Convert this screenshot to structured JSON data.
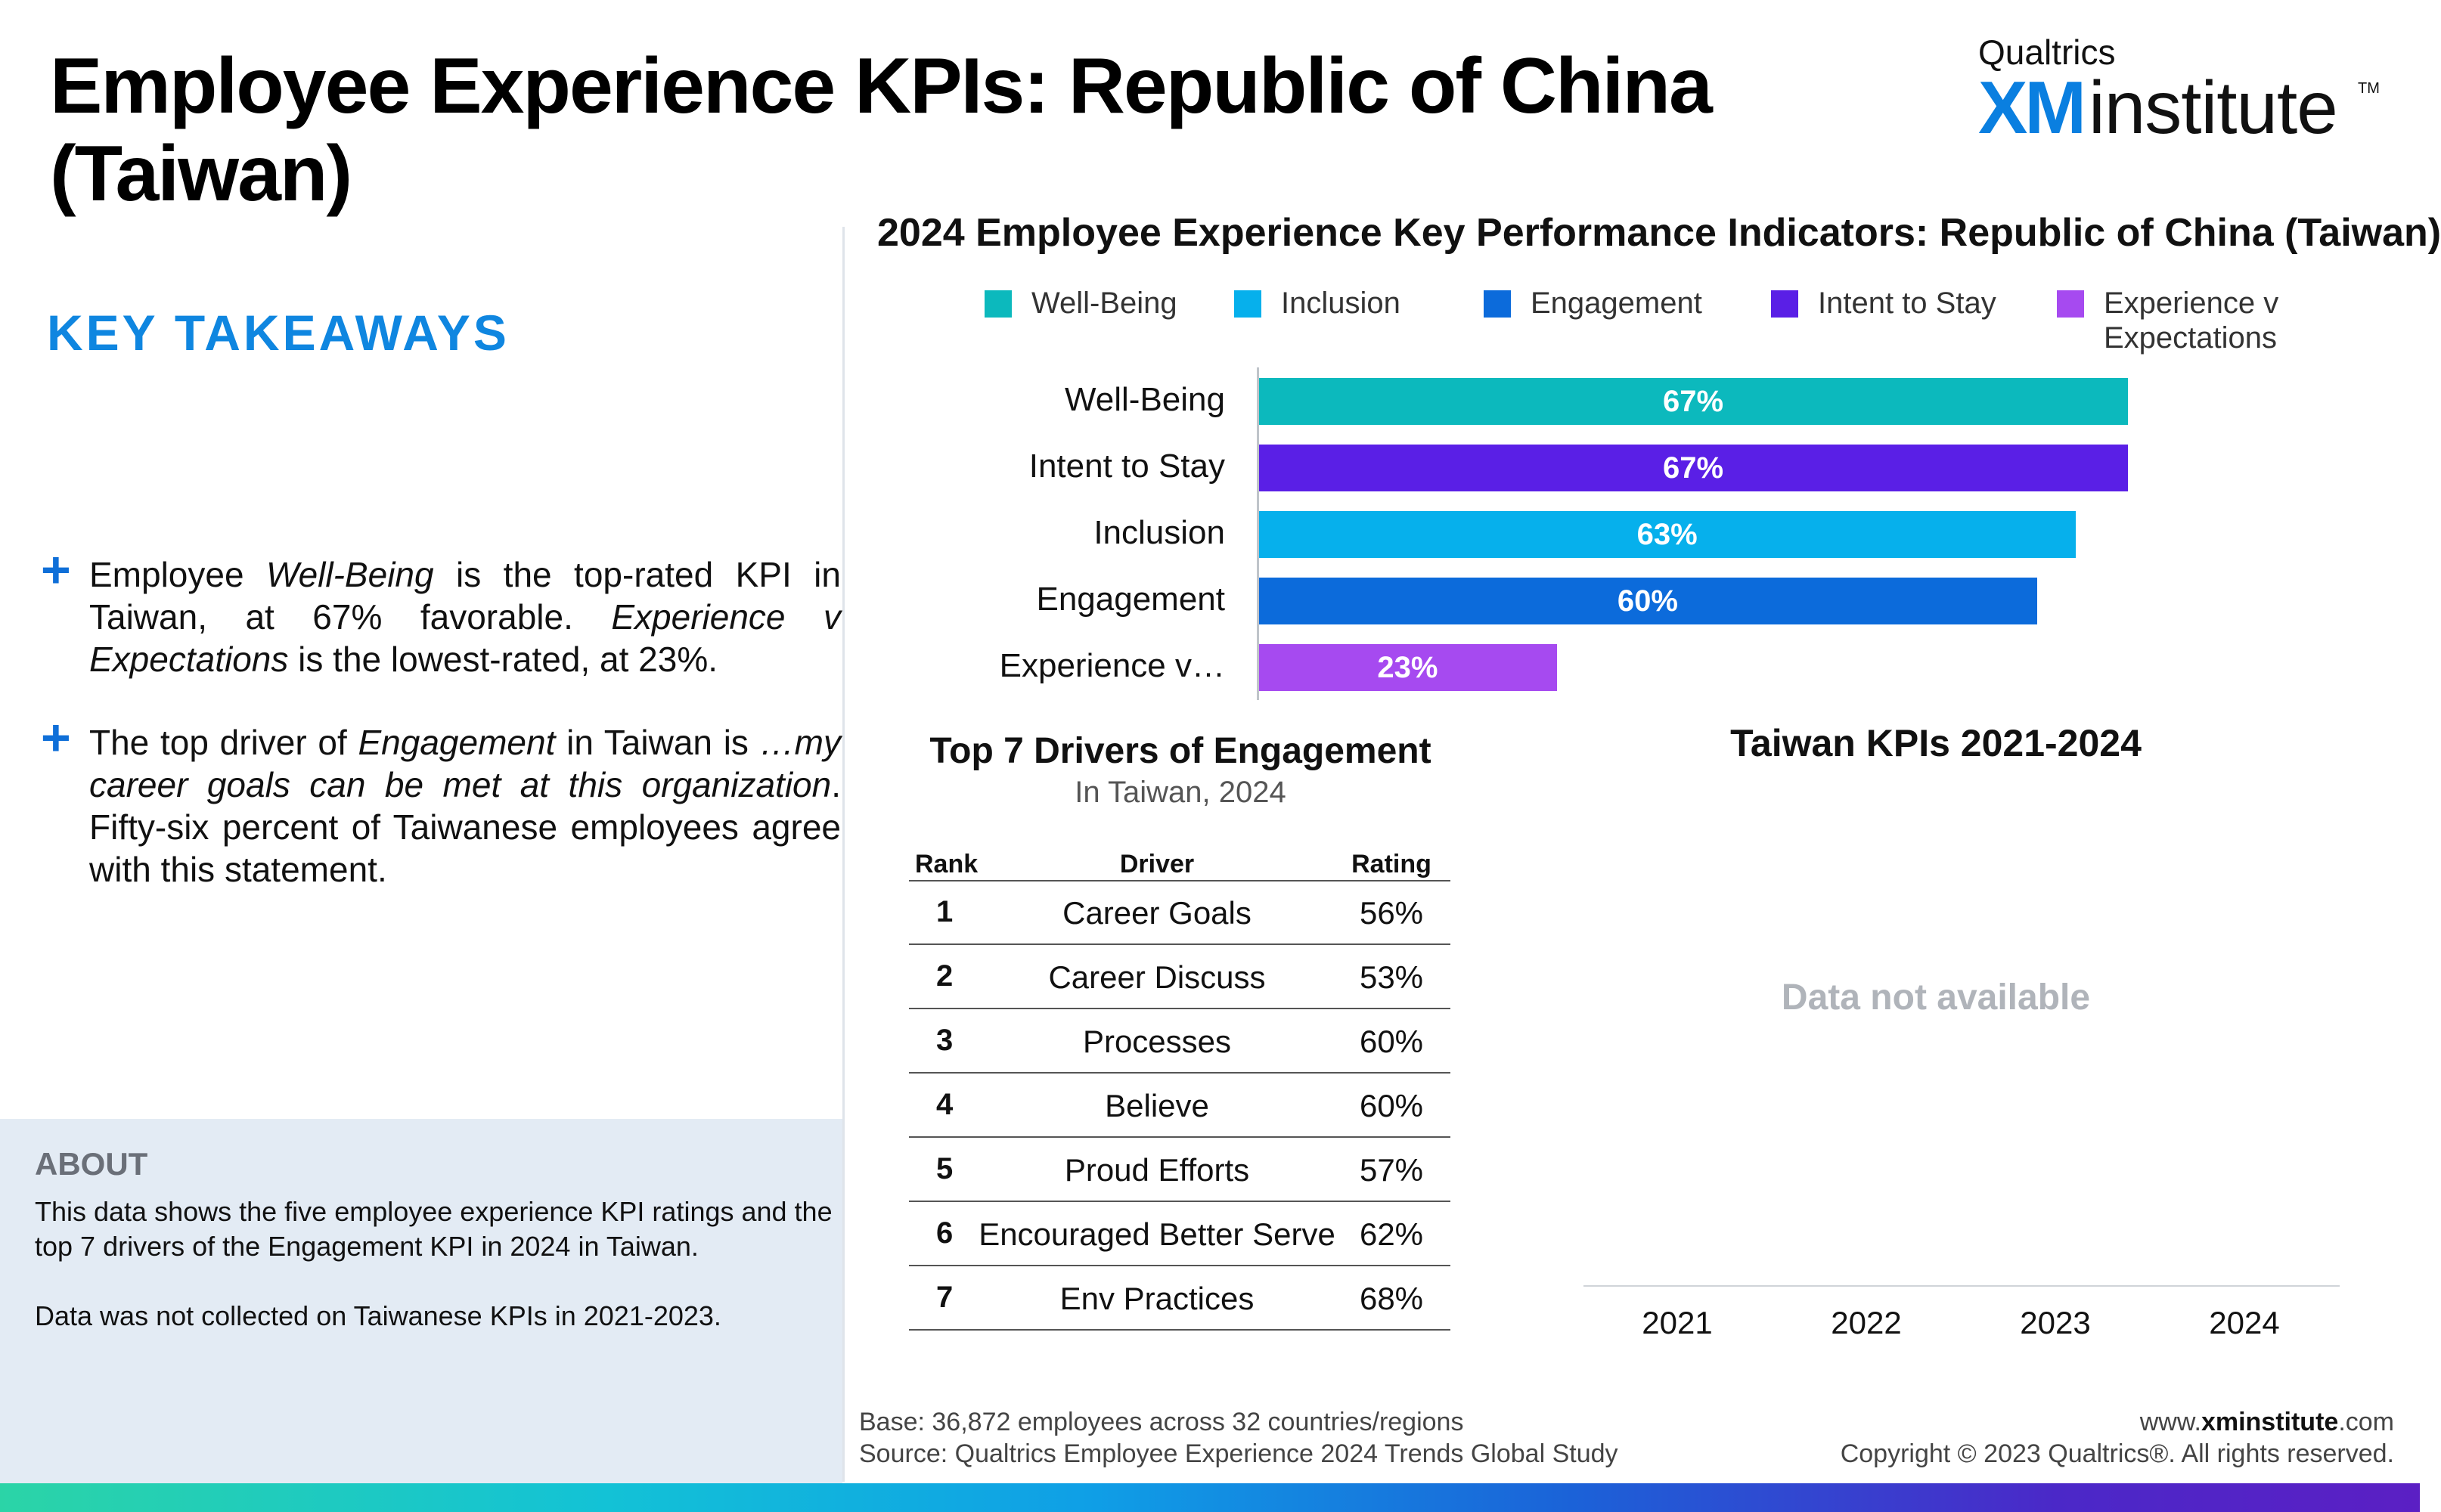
{
  "page": {
    "title": "Employee Experience KPIs: Republic of China (Taiwan)"
  },
  "logo": {
    "top": "Qualtrics",
    "xm": "XM",
    "institute": "institute",
    "tm": "TM"
  },
  "takeaways": {
    "heading": "KEY TAKEAWAYS",
    "bullets": [
      {
        "icon": "plus-icon",
        "parts": [
          {
            "text": "Employee ",
            "italic": false
          },
          {
            "text": "Well-Being",
            "italic": true
          },
          {
            "text": " is the top-rated KPI in Taiwan, at 67% favorable. ",
            "italic": false
          },
          {
            "text": "Experience v Expectations",
            "italic": true
          },
          {
            "text": " is the lowest-rated, at 23%.",
            "italic": false
          }
        ]
      },
      {
        "icon": "plus-icon",
        "parts": [
          {
            "text": "The top driver of ",
            "italic": false
          },
          {
            "text": "Engagement",
            "italic": true
          },
          {
            "text": " in Taiwan is ",
            "italic": false
          },
          {
            "text": "…my career goals can be met at this organization",
            "italic": true
          },
          {
            "text": ". Fifty-six percent of Taiwanese employees agree with this statement.",
            "italic": false
          }
        ]
      }
    ]
  },
  "about": {
    "heading": "ABOUT",
    "line1": "This data shows the five employee experience KPI ratings and the top 7 drivers of the Engagement KPI in 2024 in Taiwan.",
    "line2": "Data was not collected on Taiwanese KPIs in 2021-2023."
  },
  "chart_data": [
    {
      "type": "bar",
      "orientation": "horizontal",
      "title": "2024 Employee Experience Key Performance Indicators: Republic of China (Taiwan)",
      "legend": [
        {
          "name": "Well-Being",
          "color": "#0cb9bd"
        },
        {
          "name": "Inclusion",
          "color": "#06b0ec"
        },
        {
          "name": "Engagement",
          "color": "#0c6bdb"
        },
        {
          "name": "Intent to Stay",
          "color": "#5a1fe6"
        },
        {
          "name": "Experience v Expectations",
          "color": "#a64af0"
        }
      ],
      "legend_position": "top",
      "categories": [
        "Well-Being",
        "Intent to Stay",
        "Inclusion",
        "Engagement",
        "Experience v…"
      ],
      "values": [
        67,
        67,
        63,
        60,
        23
      ],
      "labels": [
        "67%",
        "67%",
        "63%",
        "60%",
        "23%"
      ],
      "colors": [
        "#0cb9bd",
        "#5a1fe6",
        "#06b0ec",
        "#0c6bdb",
        "#a64af0"
      ],
      "xlim": [
        0,
        100
      ],
      "grid": false
    },
    {
      "type": "table",
      "title": "Top 7 Drivers of Engagement",
      "subtitle": "In Taiwan, 2024",
      "columns": [
        "Rank",
        "Driver",
        "Rating"
      ],
      "rows": [
        [
          "1",
          "Career Goals",
          "56%"
        ],
        [
          "2",
          "Career Discuss",
          "53%"
        ],
        [
          "3",
          "Processes",
          "60%"
        ],
        [
          "4",
          "Believe",
          "60%"
        ],
        [
          "5",
          "Proud Efforts",
          "57%"
        ],
        [
          "6",
          "Encouraged Better Serve",
          "62%"
        ],
        [
          "7",
          "Env Practices",
          "68%"
        ]
      ]
    },
    {
      "type": "line",
      "title": "Taiwan KPIs 2021-2024",
      "categories": [
        "2021",
        "2022",
        "2023",
        "2024"
      ],
      "series": [],
      "note": "Data not available"
    }
  ],
  "footer": {
    "base": "Base: 36,872 employees across 32 countries/regions",
    "source": "Source: Qualtrics Employee Experience 2024 Trends Global Study",
    "site_prefix": "www.",
    "site_bold": "xminstitute",
    "site_suffix": ".com",
    "copyright": "Copyright © 2023 Qualtrics®. All rights reserved."
  }
}
